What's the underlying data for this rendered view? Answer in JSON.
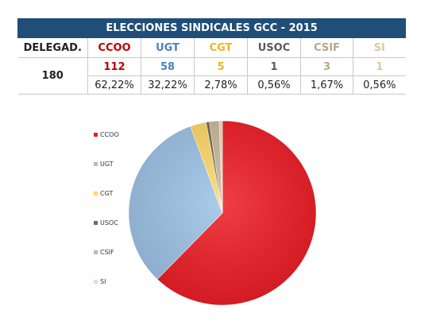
{
  "table": {
    "title": "ELECCIONES SINDICALES GCC - 2015",
    "delegates_label": "DELEGAD.",
    "delegates_total": "180",
    "columns": [
      {
        "name": "CCOO",
        "count": "112",
        "percent": "62,22%",
        "color": "#c00000"
      },
      {
        "name": "UGT",
        "count": "58",
        "percent": "32,22%",
        "color": "#4f81bd"
      },
      {
        "name": "CGT",
        "count": "5",
        "percent": "2,78%",
        "color": "#f0b323"
      },
      {
        "name": "USOC",
        "count": "1",
        "percent": "0,56%",
        "color": "#5a5a5a"
      },
      {
        "name": "CSIF",
        "count": "3",
        "percent": "1,67%",
        "color": "#b7a68a"
      },
      {
        "name": "SI",
        "count": "1",
        "percent": "0,56%",
        "color": "#d8c9a3"
      }
    ]
  },
  "chart_data": {
    "type": "pie",
    "legend_position": "left",
    "slices": [
      {
        "name": "CCOO",
        "value": 112,
        "color": "#ee1c25"
      },
      {
        "name": "UGT",
        "value": 58,
        "color": "#9dc3e6"
      },
      {
        "name": "CGT",
        "value": 5,
        "color": "#ffd966"
      },
      {
        "name": "USOC",
        "value": 1,
        "color": "#7a6a4a"
      },
      {
        "name": "CSIF",
        "value": 3,
        "color": "#c9b99a"
      },
      {
        "name": "SI",
        "value": 1,
        "color": "#eadcb8"
      }
    ]
  }
}
